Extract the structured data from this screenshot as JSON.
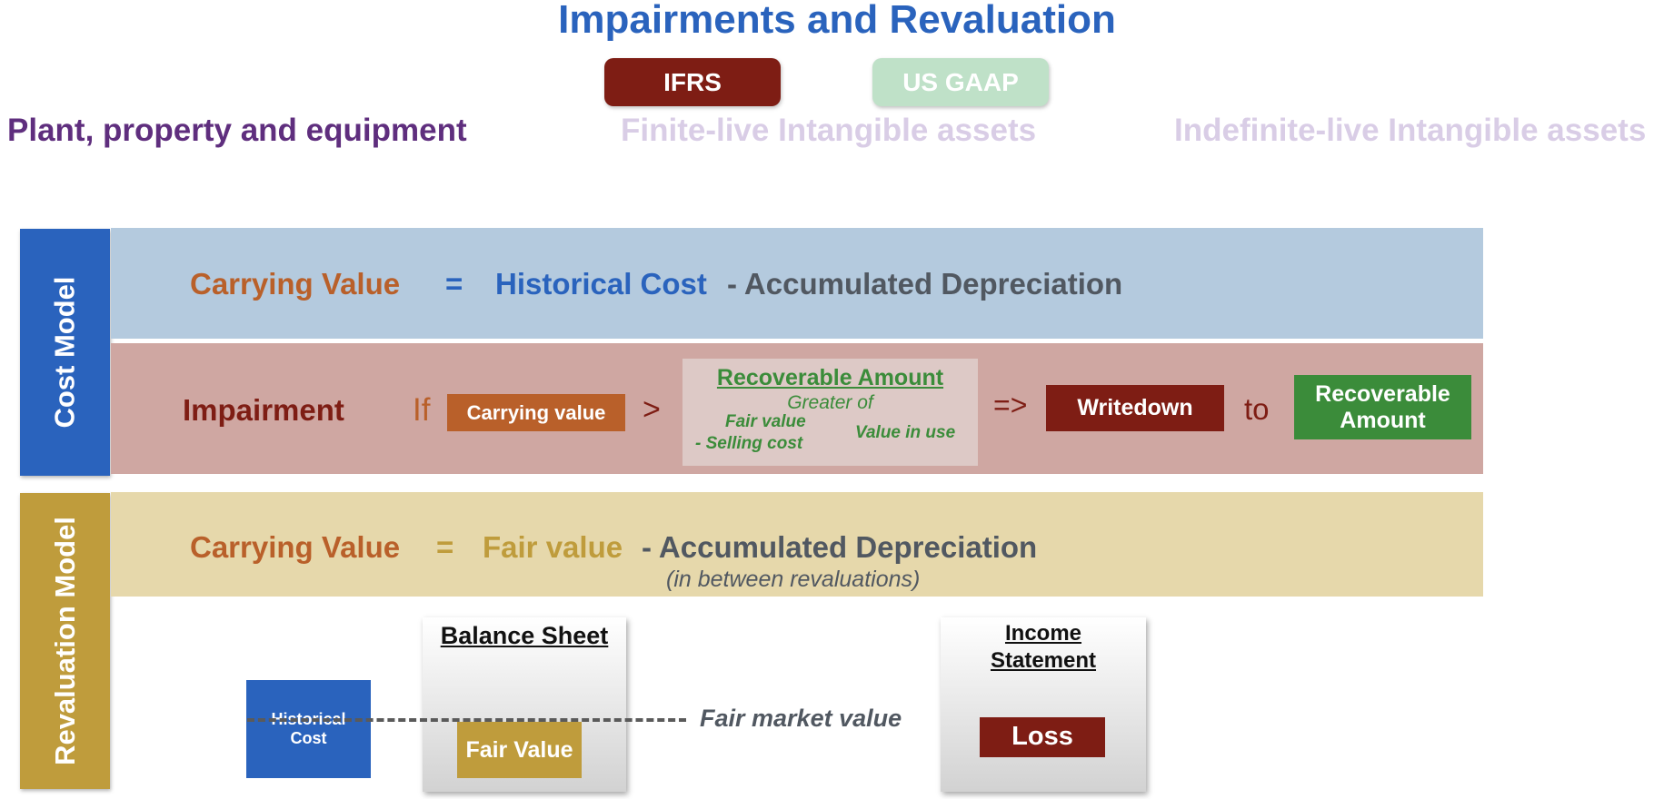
{
  "header": {
    "title": "Impairments and Revaluation",
    "tabs": [
      {
        "label": "IFRS",
        "active": true,
        "color": "#7e1d14"
      },
      {
        "label": "US GAAP",
        "active": false,
        "color": "#bfe1c8"
      }
    ],
    "asset_types": [
      {
        "label": "Plant, property and equipment",
        "active": true,
        "color": "#5f2e7e"
      },
      {
        "label": "Finite-live Intangible assets",
        "active": false,
        "color": "#d9cde6"
      },
      {
        "label": "Indefinite-live Intangible assets",
        "active": false,
        "color": "#d9cde6"
      }
    ]
  },
  "cost_model": {
    "label": "Cost Model",
    "formula": {
      "carrying_value": "Carrying Value",
      "equals": "=",
      "historical_cost": "Historical Cost",
      "minus_dep": "- Accumulated Depreciation"
    },
    "impairment": {
      "label": "Impairment",
      "if_text": "If",
      "carrying_value_box": "Carrying value",
      "gt": ">",
      "recoverable_title": "Recoverable Amount",
      "greater_of": "Greater of",
      "fair_value": "Fair value",
      "selling_cost": "- Selling cost",
      "value_in_use": "Value in use",
      "arrow": "=>",
      "writedown": "Writedown",
      "to_text": "to",
      "recoverable_box_line1": "Recoverable",
      "recoverable_box_line2": "Amount"
    }
  },
  "revaluation_model": {
    "label": "Revaluation Model",
    "formula": {
      "carrying_value": "Carrying Value",
      "equals": "=",
      "fair_value": "Fair value",
      "minus_dep": "- Accumulated Depreciation",
      "note": "(in between revaluations)"
    },
    "balance_sheet": {
      "title": "Balance Sheet",
      "historical_cost_line1": "Historical",
      "historical_cost_line2": "Cost",
      "fair_value_box": "Fair Value"
    },
    "fair_market_value": "Fair market value",
    "income_statement": {
      "title_line1": "Income",
      "title_line2": "Statement",
      "loss_box": "Loss"
    }
  },
  "colors": {
    "blue": "#2a63bd",
    "dark_red": "#7e1d14",
    "orange": "#b9602a",
    "green": "#3b8c3a",
    "gold": "#bf9c3c",
    "grey_text": "#515861",
    "cost_row_bg": "#b4cade",
    "impairment_row_bg": "#cfa7a2",
    "reval_row_bg": "#e6d8ab"
  }
}
